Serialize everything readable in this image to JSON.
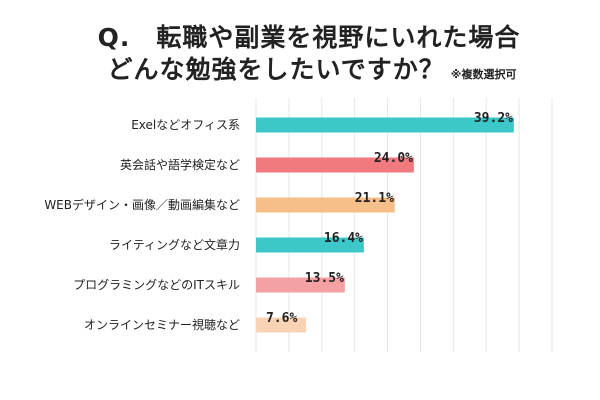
{
  "title": {
    "line1": "Q.　転職や副業を視野にいれた場合",
    "line2": "どんな勉強をしたいですか？",
    "note": "※複数選択可"
  },
  "chart_data": {
    "type": "bar",
    "orientation": "horizontal",
    "categories": [
      "Exelなどオフィス系",
      "英会話や語学検定など",
      "WEBデザイン・画像／動画編集など",
      "ライティングなど文章力",
      "プログラミングなどのITスキル",
      "オンラインセミナー視聴など"
    ],
    "values": [
      39.2,
      24.0,
      21.1,
      16.4,
      13.5,
      7.6
    ],
    "value_labels": [
      "39.2%",
      "24.0%",
      "21.1%",
      "16.4%",
      "13.5%",
      "7.6%"
    ],
    "bar_colors": [
      "#3cc8c8",
      "#f17a7e",
      "#f5bf8a",
      "#3cc8c8",
      "#f4a1a3",
      "#f9d3b3"
    ],
    "xlim": [
      0,
      45
    ],
    "grid": true,
    "grid_color": "#e6e6e6"
  }
}
